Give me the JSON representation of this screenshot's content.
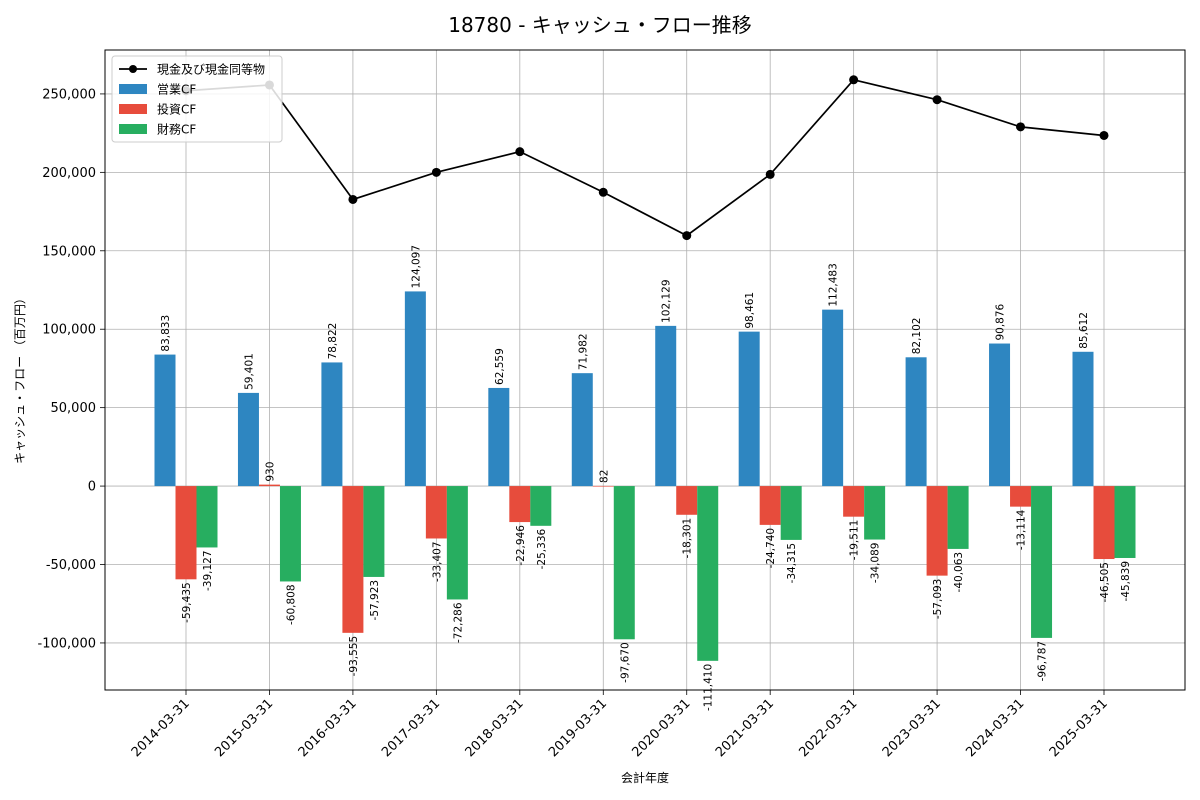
{
  "chart_data": {
    "type": "bar",
    "title": "18780 - キャッシュ・フロー推移",
    "xlabel": "会計年度",
    "ylabel": "キャッシュ・フロー （百万円）",
    "ylim": [
      -130000,
      278000
    ],
    "yticks": [
      -100000,
      -50000,
      0,
      50000,
      100000,
      150000,
      200000,
      250000
    ],
    "ytick_labels": [
      "-100,000",
      "-50,000",
      "0",
      "50,000",
      "100,000",
      "150,000",
      "200,000",
      "250,000"
    ],
    "grid": true,
    "legend_position": "top-left",
    "categories": [
      "2014-03-31",
      "2015-03-31",
      "2016-03-31",
      "2017-03-31",
      "2018-03-31",
      "2019-03-31",
      "2020-03-31",
      "2021-03-31",
      "2022-03-31",
      "2023-03-31",
      "2024-03-31",
      "2025-03-31"
    ],
    "series": [
      {
        "name": "営業CF",
        "type": "bar",
        "color": "#2e86c1",
        "values": [
          83833,
          59401,
          78822,
          124097,
          62559,
          71982,
          102129,
          98461,
          112483,
          82102,
          90876,
          85612
        ],
        "labels": [
          "83,833",
          "59,401",
          "78,822",
          "124,097",
          "62,559",
          "71,982",
          "102,129",
          "98,461",
          "112,483",
          "82,102",
          "90,876",
          "85,612"
        ]
      },
      {
        "name": "投資CF",
        "type": "bar",
        "color": "#e74c3c",
        "values": [
          -59435,
          930,
          -93555,
          -33407,
          -22946,
          82,
          -18301,
          -24740,
          -19511,
          -57093,
          -13114,
          -46505
        ],
        "labels": [
          "-59,435",
          "930",
          "-93,555",
          "-33,407",
          "-22,946",
          "82",
          "-18,301",
          "-24,740",
          "-19,511",
          "-57,093",
          "-13,114",
          "-46,505"
        ]
      },
      {
        "name": "財務CF",
        "type": "bar",
        "color": "#27ae60",
        "values": [
          -39127,
          -60808,
          -57923,
          -72286,
          -25336,
          -97670,
          -111410,
          -34315,
          -34089,
          -40063,
          -96787,
          -45839
        ],
        "labels": [
          "-39,127",
          "-60,808",
          "-57,923",
          "-72,286",
          "-25,336",
          "-97,670",
          "-111,410",
          "-34,315",
          "-34,089",
          "-40,063",
          "-96,787",
          "-45,839"
        ]
      },
      {
        "name": "現金及び現金同等物",
        "type": "line",
        "color": "#000000",
        "values": [
          252000,
          255700,
          182700,
          200000,
          213200,
          187300,
          159700,
          198700,
          259000,
          246300,
          229000,
          223500
        ]
      }
    ]
  }
}
